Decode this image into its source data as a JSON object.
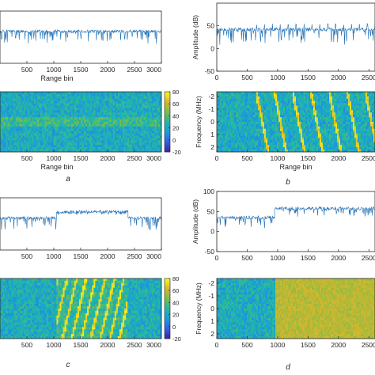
{
  "figure": {
    "panel_labels": [
      "a",
      "b",
      "c",
      "d"
    ]
  },
  "colors": {
    "signal_line": "#1f6fb4",
    "axis": "#262626",
    "colormap": [
      "#3e26a8",
      "#2f62ee",
      "#1a9ed8",
      "#22b9a1",
      "#79bd49",
      "#d6b62c",
      "#f9f71b"
    ]
  },
  "chart_data": [
    {
      "id": "a_top",
      "type": "line",
      "panel": "a",
      "xlabel": "Range bin",
      "ylabel": "",
      "xlim": [
        0,
        3000
      ],
      "ylim": [
        -50,
        100
      ],
      "xticks": [
        "500",
        "1000",
        "1500",
        "2000",
        "2500",
        "3000"
      ],
      "yticks": [],
      "grid": false,
      "series": [
        {
          "segments": [
            {
              "x": [
                0,
                3000
              ],
              "baseline": 42,
              "noise_down": 35
            }
          ]
        }
      ]
    },
    {
      "id": "a_bottom",
      "type": "heatmap",
      "panel": "a",
      "xlabel": "Range bin",
      "ylabel": "",
      "xlim": [
        0,
        3000
      ],
      "xticks": [
        "500",
        "1000",
        "1500",
        "2000",
        "2500",
        "3000"
      ],
      "yticks": [],
      "colorbar": {
        "ticks": [
          "80",
          "60",
          "40",
          "20",
          "0",
          "-20"
        ],
        "range": [
          -20,
          80
        ]
      },
      "pattern": "noise"
    },
    {
      "id": "b_top",
      "type": "line",
      "panel": "b",
      "xlabel": "",
      "ylabel": "Amplitude (dB)",
      "xlim": [
        0,
        2600
      ],
      "ylim": [
        -50,
        100
      ],
      "xticks": [
        "0",
        "500",
        "1000",
        "1500",
        "2000",
        "2500"
      ],
      "yticks": [
        "50",
        "0",
        "-50"
      ],
      "grid": false,
      "series": [
        {
          "segments": [
            {
              "x": [
                0,
                2600
              ],
              "baseline": 42,
              "noise_down": 35
            }
          ],
          "periodic_spikes": {
            "from": 650,
            "period": 130,
            "level": 52
          }
        }
      ]
    },
    {
      "id": "b_bottom",
      "type": "heatmap",
      "panel": "b",
      "xlabel": "Range bin",
      "ylabel": "Frequency (MHz)",
      "xlim": [
        0,
        2600
      ],
      "xticks": [
        "0",
        "500",
        "1000",
        "1500",
        "2000",
        "2500"
      ],
      "yticks": [
        "-2",
        "-1",
        "0",
        "1",
        "2"
      ],
      "pattern": "periodic_chirps",
      "chirp_region": [
        650,
        2600
      ]
    },
    {
      "id": "c_top",
      "type": "line",
      "panel": "c",
      "xlabel": "",
      "ylabel": "",
      "xlim": [
        0,
        3000
      ],
      "ylim": [
        -50,
        100
      ],
      "xticks": [
        "500",
        "1000",
        "1500",
        "2000",
        "2500",
        "3000"
      ],
      "yticks": [],
      "grid": false,
      "series": [
        {
          "segments": [
            {
              "x": [
                0,
                1050
              ],
              "baseline": 42,
              "noise_down": 35
            },
            {
              "x": [
                1050,
                2380
              ],
              "baseline": 60,
              "noise_down": 8
            },
            {
              "x": [
                2380,
                3000
              ],
              "baseline": 42,
              "noise_down": 35
            }
          ]
        }
      ]
    },
    {
      "id": "c_bottom",
      "type": "heatmap",
      "panel": "c",
      "xlabel": "",
      "ylabel": "",
      "xlim": [
        0,
        3000
      ],
      "xticks": [
        "500",
        "1000",
        "1500",
        "2000",
        "2500",
        "3000"
      ],
      "yticks": [],
      "colorbar": {
        "ticks": [
          "80",
          "60",
          "40",
          "20",
          "0",
          "-20"
        ],
        "range": [
          -20,
          80
        ]
      },
      "pattern": "dense_chirps",
      "chirp_region": [
        1050,
        2380
      ]
    },
    {
      "id": "d_top",
      "type": "line",
      "panel": "d",
      "xlabel": "",
      "ylabel": "Amplitude (dB)",
      "xlim": [
        0,
        2600
      ],
      "ylim": [
        -50,
        100
      ],
      "xticks": [
        "0",
        "500",
        "1000",
        "1500",
        "2000",
        "2500"
      ],
      "yticks": [
        "100",
        "50",
        "0",
        "-50"
      ],
      "grid": false,
      "series": [
        {
          "segments": [
            {
              "x": [
                0,
                950
              ],
              "baseline": 35,
              "noise_down": 30
            },
            {
              "x": [
                950,
                2600
              ],
              "baseline": 58,
              "noise_down": 20
            }
          ]
        }
      ]
    },
    {
      "id": "d_bottom",
      "type": "heatmap",
      "panel": "d",
      "xlabel": "",
      "ylabel": "Frequency (MHz)",
      "xlim": [
        0,
        2600
      ],
      "xticks": [
        "0",
        "500",
        "1000",
        "1500",
        "2000",
        "2500"
      ],
      "yticks": [
        "-2",
        "-1",
        "0",
        "1",
        "2"
      ],
      "pattern": "step_wideband",
      "step_at": 950
    }
  ]
}
